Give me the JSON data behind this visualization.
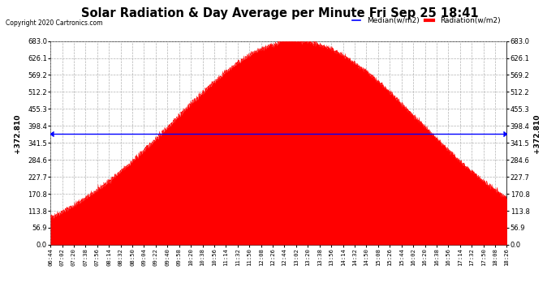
{
  "title": "Solar Radiation & Day Average per Minute Fri Sep 25 18:41",
  "copyright": "Copyright 2020 Cartronics.com",
  "median_value": 372.81,
  "y_max": 683.0,
  "y_min": 0.0,
  "y_ticks": [
    0.0,
    56.9,
    113.8,
    170.8,
    227.7,
    284.6,
    341.5,
    398.4,
    455.3,
    512.2,
    569.2,
    626.1,
    683.0
  ],
  "x_tick_labels": [
    "06:44",
    "07:02",
    "07:20",
    "07:38",
    "07:56",
    "08:14",
    "08:32",
    "08:50",
    "09:04",
    "09:22",
    "09:40",
    "09:58",
    "10:20",
    "10:38",
    "10:56",
    "11:14",
    "11:32",
    "11:50",
    "12:08",
    "12:26",
    "12:44",
    "13:02",
    "13:20",
    "13:38",
    "13:56",
    "14:14",
    "14:32",
    "14:50",
    "15:08",
    "15:26",
    "15:44",
    "16:02",
    "16:20",
    "16:38",
    "16:56",
    "17:14",
    "17:32",
    "17:50",
    "18:08",
    "18:26"
  ],
  "fill_color": "#ff0000",
  "median_line_color": "#0000ff",
  "grid_color": "#aaaaaa",
  "background_color": "#ffffff",
  "legend_median_color": "#0000ff",
  "legend_radiation_color": "#ff0000",
  "title_color": "#000000",
  "copyright_color": "#000000"
}
